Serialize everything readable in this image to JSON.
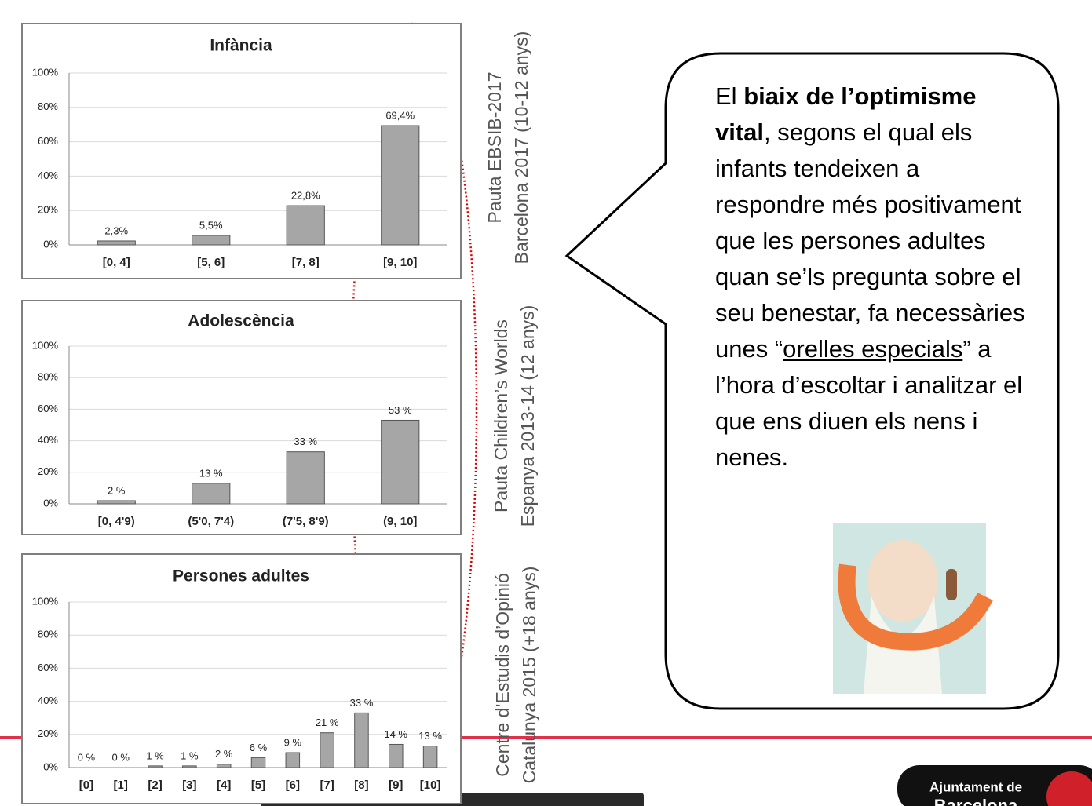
{
  "chart_data": [
    {
      "type": "bar",
      "title": "Infància",
      "categories": [
        "[0, 4]",
        "[5, 6]",
        "[7, 8]",
        "[9, 10]"
      ],
      "values": [
        2.3,
        5.5,
        22.8,
        69.4
      ],
      "value_labels": [
        "2,3%",
        "5,5%",
        "22,8%",
        "69,4%"
      ],
      "color": "#a6a6a6",
      "grid": true,
      "ylim": [
        0,
        100
      ],
      "yticks": [
        {
          "value": 0,
          "label": "0%"
        },
        {
          "value": 20,
          "label": "20%"
        },
        {
          "value": 40,
          "label": "40%"
        },
        {
          "value": 60,
          "label": "60%"
        },
        {
          "value": 80,
          "label": "80%"
        },
        {
          "value": 100,
          "label": "100%"
        }
      ]
    },
    {
      "type": "bar",
      "title": "Adolescència",
      "categories": [
        "[0, 4'9)",
        "(5'0, 7'4)",
        "(7'5, 8'9)",
        "(9, 10]"
      ],
      "values": [
        2,
        13,
        33,
        53
      ],
      "value_labels": [
        "2 %",
        "13 %",
        "33 %",
        "53 %"
      ],
      "color": "#a6a6a6",
      "grid": true,
      "ylim": [
        0,
        100
      ],
      "yticks": [
        {
          "value": 0,
          "label": "0%"
        },
        {
          "value": 20,
          "label": "20%"
        },
        {
          "value": 40,
          "label": "40%"
        },
        {
          "value": 60,
          "label": "60%"
        },
        {
          "value": 80,
          "label": "80%"
        },
        {
          "value": 100,
          "label": "100%"
        }
      ]
    },
    {
      "type": "bar",
      "title": "Persones adultes",
      "categories": [
        "[0]",
        "[1]",
        "[2]",
        "[3]",
        "[4]",
        "[5]",
        "[6]",
        "[7]",
        "[8]",
        "[9]",
        "[10]"
      ],
      "values": [
        0,
        0,
        1,
        1,
        2,
        6,
        9,
        21,
        33,
        14,
        13
      ],
      "value_labels": [
        "0 %",
        "0 %",
        "1 %",
        "1 %",
        "2 %",
        "6 %",
        "9 %",
        "21 %",
        "33 %",
        "14 %",
        "13 %"
      ],
      "color": "#a6a6a6",
      "grid": true,
      "ylim": [
        0,
        100
      ],
      "yticks": [
        {
          "value": 0,
          "label": "0%"
        },
        {
          "value": 20,
          "label": "20%"
        },
        {
          "value": 40,
          "label": "40%"
        },
        {
          "value": 60,
          "label": "60%"
        },
        {
          "value": 80,
          "label": "80%"
        },
        {
          "value": 100,
          "label": "100%"
        }
      ]
    }
  ],
  "sources": [
    [
      "Pauta EBSIB-2017",
      "Barcelona 2017 (10-12 anys)"
    ],
    [
      "Pauta Children’s Worlds",
      "Espanya 2013-14 (12 anys)"
    ],
    [
      "Centre d’Estudis d’Opinió",
      "Catalunya 2015 (+18 anys)"
    ]
  ],
  "bubble": {
    "parts": [
      "El ",
      "biaix de l’optimisme vital",
      ", segons el qual els infants tendeixen a respondre més positivament que les persones adultes quan se’ls pregunta sobre el seu benestar, fa necessàries unes “",
      "orelles especials",
      "” a l’hora d’escoltar i analitzar el que ens diuen els nens i nenes."
    ]
  },
  "logo": [
    "Ajuntament de",
    "Barcelona"
  ]
}
